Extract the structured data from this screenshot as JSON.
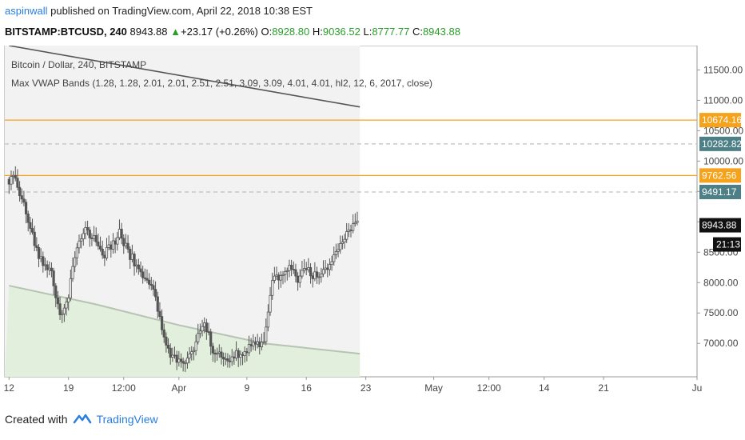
{
  "header": {
    "author": "aspinwall",
    "published_text": "published on TradingView.com, April 22, 2018 10:38 EST",
    "symbol": "BITSTAMP:BTCUSD, 240",
    "last_price": "8943.88",
    "change_arrow": "▲",
    "change": "+23.17 (+0.26%)",
    "o_label": "O:",
    "o_value": "8928.80",
    "h_label": "H:",
    "h_value": "9036.52",
    "l_label": "L:",
    "l_value": "8777.77",
    "c_label": "C:",
    "c_value": "8943.88"
  },
  "legend": {
    "title": "Bitcoin / Dollar, 240, BITSTAMP",
    "indicator": "Max VWAP Bands (1.28, 1.28, 2.01, 2.01, 2.51, 2.51, 3.09, 3.09, 4.01, 4.01, hl2, 12, 6, 2017, close)"
  },
  "footer": {
    "created_with": "Created with",
    "brand": "TradingView"
  },
  "colors": {
    "orange": "#f7a21b",
    "teal_label": "#4d7f86",
    "dark_label": "#111111",
    "candle": "#555555",
    "vwap_line": "#555555",
    "band_line": "#b5c4b1",
    "green_fill": "#e2efdc",
    "gray_fill": "#f2f2f2"
  },
  "chart_data": {
    "type": "candlestick",
    "title": "Bitcoin / Dollar, 240, BITSTAMP",
    "ylim": [
      6450,
      11900
    ],
    "y_ticks": [
      7000,
      7500,
      8000,
      8500,
      9000,
      9500,
      10000,
      10500,
      11000,
      11500
    ],
    "y_tick_labels": [
      "7000.00",
      "7500.00",
      "8000.00",
      "8500.00",
      "9000.00",
      "9500.00",
      "10000.00",
      "10500.00",
      "11000.00",
      "11500.00"
    ],
    "x_ticks": [
      {
        "label": "12",
        "day": 0
      },
      {
        "label": "19",
        "day": 7
      },
      {
        "label": "12:00",
        "day": 13.5
      },
      {
        "label": "Apr",
        "day": 20
      },
      {
        "label": "9",
        "day": 28
      },
      {
        "label": "16",
        "day": 35
      },
      {
        "label": "23",
        "day": 42
      },
      {
        "label": "May",
        "day": 50
      },
      {
        "label": "12:00",
        "day": 56.5
      },
      {
        "label": "14",
        "day": 63
      },
      {
        "label": "21",
        "day": 70
      },
      {
        "label": "Ju",
        "day": 81
      }
    ],
    "xlim": [
      -0.5,
      81
    ],
    "shade_end_day": 41.3,
    "price_path": [
      [
        0,
        9700
      ],
      [
        0.5,
        9800
      ],
      [
        1,
        9500
      ],
      [
        2,
        9200
      ],
      [
        3,
        8600
      ],
      [
        4,
        8300
      ],
      [
        5,
        8200
      ],
      [
        6,
        7450
      ],
      [
        7,
        7800
      ],
      [
        8,
        8600
      ],
      [
        9,
        8900
      ],
      [
        10,
        8700
      ],
      [
        11,
        8400
      ],
      [
        12,
        8600
      ],
      [
        13,
        8800
      ],
      [
        14,
        8500
      ],
      [
        15,
        8300
      ],
      [
        16,
        8000
      ],
      [
        17,
        7900
      ],
      [
        18,
        7200
      ],
      [
        19,
        6800
      ],
      [
        20,
        6700
      ],
      [
        21,
        6750
      ],
      [
        22,
        7000
      ],
      [
        23,
        7350
      ],
      [
        24,
        6900
      ],
      [
        25,
        6800
      ],
      [
        26,
        6700
      ],
      [
        27,
        6850
      ],
      [
        28,
        6900
      ],
      [
        29,
        7000
      ],
      [
        30,
        6950
      ],
      [
        31,
        8000
      ],
      [
        32,
        8150
      ],
      [
        33,
        8300
      ],
      [
        34,
        8050
      ],
      [
        35,
        8200
      ],
      [
        36,
        8100
      ],
      [
        37,
        8150
      ],
      [
        38,
        8350
      ],
      [
        39,
        8600
      ],
      [
        40,
        8850
      ],
      [
        41,
        8943.88
      ]
    ],
    "vwap_line": [
      [
        0,
        11900
      ],
      [
        41.3,
        10890
      ]
    ],
    "lower_band": [
      [
        0,
        7950
      ],
      [
        10,
        7650
      ],
      [
        20,
        7300
      ],
      [
        30,
        7000
      ],
      [
        41.3,
        6830
      ]
    ],
    "horizontal_levels": [
      {
        "value": 10674.16,
        "label": "10674.16",
        "style": "solid",
        "color": "orange"
      },
      {
        "value": 10282.82,
        "label": "10282.82",
        "style": "dashed",
        "color": "teal"
      },
      {
        "value": 9762.56,
        "label": "9762.56",
        "style": "solid",
        "color": "orange"
      },
      {
        "value": 9491.17,
        "label": "9491.17",
        "style": "dashed",
        "color": "teal"
      }
    ],
    "last_price_label": "8943.88",
    "countdown_label": "21:13"
  }
}
